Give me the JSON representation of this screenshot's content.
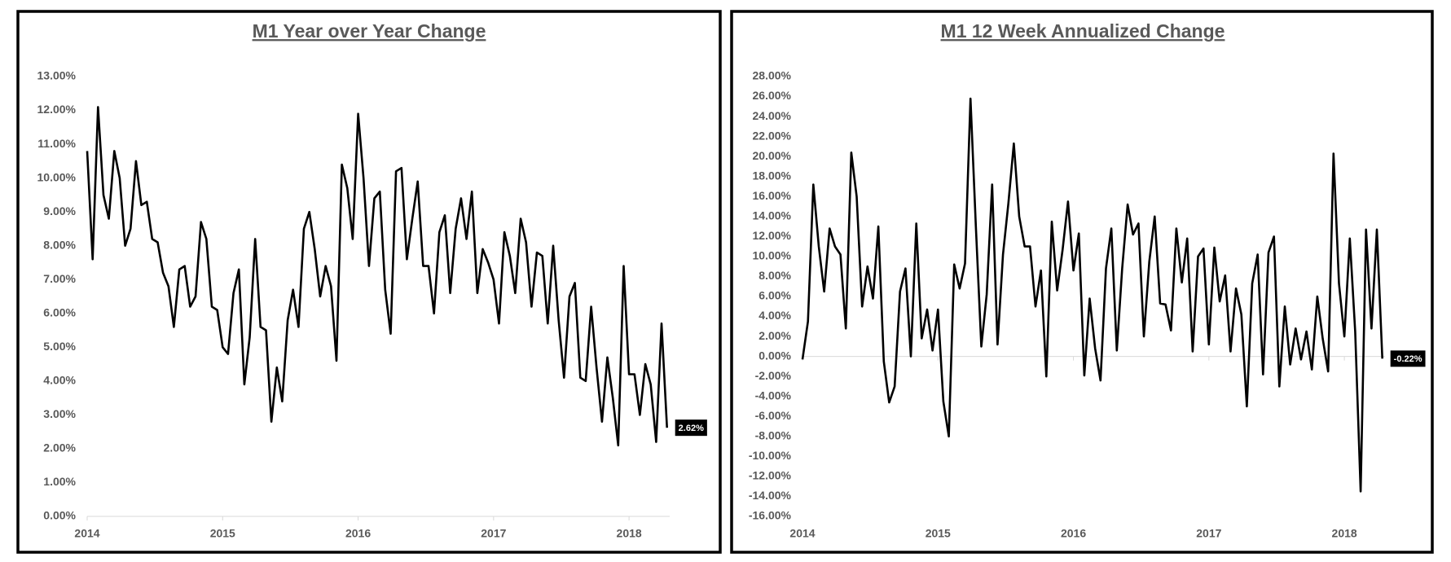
{
  "chart_data": [
    {
      "type": "line",
      "title": "M1 Year over Year Change",
      "x": [
        2014,
        2014.04,
        2014.08,
        2014.12,
        2014.16,
        2014.2,
        2014.24,
        2014.28,
        2014.32,
        2014.36,
        2014.4,
        2014.44,
        2014.48,
        2014.52,
        2014.56,
        2014.6,
        2014.64,
        2014.68,
        2014.72,
        2014.76,
        2014.8,
        2014.84,
        2014.88,
        2014.92,
        2014.96,
        2015,
        2015.04,
        2015.08,
        2015.12,
        2015.16,
        2015.2,
        2015.24,
        2015.28,
        2015.32,
        2015.36,
        2015.4,
        2015.44,
        2015.48,
        2015.52,
        2015.56,
        2015.6,
        2015.64,
        2015.68,
        2015.72,
        2015.76,
        2015.8,
        2015.84,
        2015.88,
        2015.92,
        2015.96,
        2016,
        2016.04,
        2016.08,
        2016.12,
        2016.16,
        2016.2,
        2016.24,
        2016.28,
        2016.32,
        2016.36,
        2016.4,
        2016.44,
        2016.48,
        2016.52,
        2016.56,
        2016.6,
        2016.64,
        2016.68,
        2016.72,
        2016.76,
        2016.8,
        2016.84,
        2016.88,
        2016.92,
        2016.96,
        2017,
        2017.04,
        2017.08,
        2017.12,
        2017.16,
        2017.2,
        2017.24,
        2017.28,
        2017.32,
        2017.36,
        2017.4,
        2017.44,
        2017.48,
        2017.52,
        2017.56,
        2017.6,
        2017.64,
        2017.68,
        2017.72,
        2017.76,
        2017.8,
        2017.84,
        2017.88,
        2017.92,
        2017.96,
        2018,
        2018.04,
        2018.08,
        2018.12,
        2018.16,
        2018.2,
        2018.24,
        2018.28
      ],
      "series": [
        {
          "color": "#000000",
          "values": [
            10.8,
            7.6,
            12.1,
            9.5,
            8.8,
            10.8,
            10.0,
            8.0,
            8.5,
            10.5,
            9.2,
            9.3,
            8.2,
            8.1,
            7.2,
            6.8,
            5.6,
            7.3,
            7.4,
            6.2,
            6.5,
            8.7,
            8.2,
            6.2,
            6.1,
            5.0,
            4.8,
            6.6,
            7.3,
            3.9,
            5.3,
            8.2,
            5.6,
            5.5,
            2.8,
            4.4,
            3.4,
            5.8,
            6.7,
            5.6,
            8.5,
            9.0,
            7.9,
            6.5,
            7.4,
            6.8,
            4.6,
            10.4,
            9.7,
            8.2,
            11.9,
            10.0,
            7.4,
            9.4,
            9.6,
            6.7,
            5.4,
            10.2,
            10.3,
            7.6,
            8.8,
            9.9,
            7.4,
            7.4,
            6.0,
            8.4,
            8.9,
            6.6,
            8.5,
            9.4,
            8.2,
            9.6,
            6.6,
            7.9,
            7.5,
            7.0,
            5.7,
            8.4,
            7.7,
            6.6,
            8.8,
            8.1,
            6.2,
            7.8,
            7.7,
            5.7,
            8.0,
            5.8,
            4.1,
            6.5,
            6.9,
            4.1,
            4.0,
            6.2,
            4.4,
            2.8,
            4.7,
            3.5,
            2.1,
            7.4,
            4.2,
            4.2,
            3.0,
            4.5,
            3.9,
            2.2,
            5.7,
            2.62
          ]
        }
      ],
      "end_label": "2.62%",
      "xlim": [
        2014,
        2018.3
      ],
      "xticks": [
        2014,
        2015,
        2016,
        2017,
        2018
      ],
      "ylim": [
        0,
        13
      ],
      "yticks": [
        {
          "value": 0,
          "label": "0.00%"
        },
        {
          "value": 1,
          "label": "1.00%"
        },
        {
          "value": 2,
          "label": "2.00%"
        },
        {
          "value": 3,
          "label": "3.00%"
        },
        {
          "value": 4,
          "label": "4.00%"
        },
        {
          "value": 5,
          "label": "5.00%"
        },
        {
          "value": 6,
          "label": "6.00%"
        },
        {
          "value": 7,
          "label": "7.00%"
        },
        {
          "value": 8,
          "label": "8.00%"
        },
        {
          "value": 9,
          "label": "9.00%"
        },
        {
          "value": 10,
          "label": "10.00%"
        },
        {
          "value": 11,
          "label": "11.00%"
        },
        {
          "value": 12,
          "label": "12.00%"
        },
        {
          "value": 13,
          "label": "13.00%"
        }
      ],
      "grid": false
    },
    {
      "type": "line",
      "title": "M1 12 Week Annualized Change",
      "x": [
        2014,
        2014.04,
        2014.08,
        2014.12,
        2014.16,
        2014.2,
        2014.24,
        2014.28,
        2014.32,
        2014.36,
        2014.4,
        2014.44,
        2014.48,
        2014.52,
        2014.56,
        2014.6,
        2014.64,
        2014.68,
        2014.72,
        2014.76,
        2014.8,
        2014.84,
        2014.88,
        2014.92,
        2014.96,
        2015,
        2015.04,
        2015.08,
        2015.12,
        2015.16,
        2015.2,
        2015.24,
        2015.28,
        2015.32,
        2015.36,
        2015.4,
        2015.44,
        2015.48,
        2015.52,
        2015.56,
        2015.6,
        2015.64,
        2015.68,
        2015.72,
        2015.76,
        2015.8,
        2015.84,
        2015.88,
        2015.92,
        2015.96,
        2016,
        2016.04,
        2016.08,
        2016.12,
        2016.16,
        2016.2,
        2016.24,
        2016.28,
        2016.32,
        2016.36,
        2016.4,
        2016.44,
        2016.48,
        2016.52,
        2016.56,
        2016.6,
        2016.64,
        2016.68,
        2016.72,
        2016.76,
        2016.8,
        2016.84,
        2016.88,
        2016.92,
        2016.96,
        2017,
        2017.04,
        2017.08,
        2017.12,
        2017.16,
        2017.2,
        2017.24,
        2017.28,
        2017.32,
        2017.36,
        2017.4,
        2017.44,
        2017.48,
        2017.52,
        2017.56,
        2017.6,
        2017.64,
        2017.68,
        2017.72,
        2017.76,
        2017.8,
        2017.84,
        2017.88,
        2017.92,
        2017.96,
        2018,
        2018.04,
        2018.08,
        2018.12,
        2018.16,
        2018.2,
        2018.24,
        2018.28
      ],
      "series": [
        {
          "color": "#000000",
          "values": [
            -0.3,
            3.5,
            17.2,
            11.0,
            6.5,
            12.8,
            11.0,
            10.2,
            2.8,
            20.4,
            16.0,
            5.0,
            9.0,
            5.8,
            13.0,
            -0.5,
            -4.6,
            -3.0,
            6.5,
            8.8,
            0.0,
            13.3,
            1.8,
            4.7,
            0.6,
            4.7,
            -4.5,
            -8.0,
            9.2,
            6.8,
            9.3,
            25.8,
            13.0,
            1.0,
            6.2,
            17.2,
            1.2,
            10.2,
            15.3,
            21.3,
            14.0,
            11.0,
            11.0,
            5.0,
            8.6,
            -2.0,
            13.5,
            6.6,
            10.7,
            15.5,
            8.6,
            12.3,
            -1.9,
            5.8,
            0.8,
            -2.4,
            8.8,
            12.8,
            0.6,
            8.8,
            15.2,
            12.2,
            13.3,
            2.0,
            9.5,
            14.0,
            5.3,
            5.2,
            2.6,
            12.8,
            7.4,
            11.8,
            0.5,
            10.0,
            10.8,
            1.2,
            10.9,
            5.5,
            8.1,
            0.5,
            6.8,
            4.2,
            -5.0,
            7.3,
            10.2,
            -1.8,
            10.4,
            12.0,
            -3.0,
            5.0,
            -0.8,
            2.8,
            -0.3,
            2.5,
            -1.3,
            6.0,
            1.8,
            -1.5,
            20.3,
            7.3,
            2.0,
            11.8,
            2.5,
            -13.5,
            12.7,
            2.8,
            12.7,
            -0.22
          ]
        }
      ],
      "end_label": "-0.22%",
      "xlim": [
        2014,
        2018.3
      ],
      "xticks": [
        2014,
        2015,
        2016,
        2017,
        2018
      ],
      "ylim": [
        -16,
        28
      ],
      "yticks": [
        {
          "value": -16,
          "label": "-16.00%"
        },
        {
          "value": -14,
          "label": "-14.00%"
        },
        {
          "value": -12,
          "label": "-12.00%"
        },
        {
          "value": -10,
          "label": "-10.00%"
        },
        {
          "value": -8,
          "label": "-8.00%"
        },
        {
          "value": -6,
          "label": "-6.00%"
        },
        {
          "value": -4,
          "label": "-4.00%"
        },
        {
          "value": -2,
          "label": "-2.00%"
        },
        {
          "value": 0,
          "label": "0.00%"
        },
        {
          "value": 2,
          "label": "2.00%"
        },
        {
          "value": 4,
          "label": "4.00%"
        },
        {
          "value": 6,
          "label": "6.00%"
        },
        {
          "value": 8,
          "label": "8.00%"
        },
        {
          "value": 10,
          "label": "10.00%"
        },
        {
          "value": 12,
          "label": "12.00%"
        },
        {
          "value": 14,
          "label": "14.00%"
        },
        {
          "value": 16,
          "label": "16.00%"
        },
        {
          "value": 18,
          "label": "18.00%"
        },
        {
          "value": 20,
          "label": "20.00%"
        },
        {
          "value": 22,
          "label": "22.00%"
        },
        {
          "value": 24,
          "label": "24.00%"
        },
        {
          "value": 26,
          "label": "26.00%"
        },
        {
          "value": 28,
          "label": "28.00%"
        }
      ],
      "grid": false
    }
  ]
}
